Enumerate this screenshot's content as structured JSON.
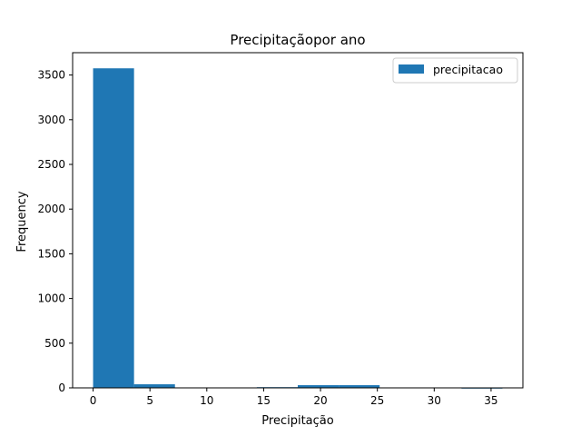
{
  "chart_data": {
    "type": "bar",
    "title": "Precipitaçãopor ano",
    "xlabel": "Precipitação",
    "ylabel": "Frequency",
    "legend": {
      "position": "top-right",
      "entries": [
        "precipitacao"
      ]
    },
    "xlim": [
      -1.8,
      37.8
    ],
    "ylim": [
      0,
      3750
    ],
    "xticks": [
      0,
      5,
      10,
      15,
      20,
      25,
      30,
      35
    ],
    "yticks": [
      0,
      500,
      1000,
      1500,
      2000,
      2500,
      3000,
      3500
    ],
    "bin_width": 3.6,
    "series": [
      {
        "name": "precipitacao",
        "color": "#1f77b4",
        "bins": [
          {
            "x0": 0.0,
            "x1": 3.6,
            "value": 3575
          },
          {
            "x0": 3.6,
            "x1": 7.2,
            "value": 40
          },
          {
            "x0": 7.2,
            "x1": 10.8,
            "value": 0
          },
          {
            "x0": 10.8,
            "x1": 14.4,
            "value": 0
          },
          {
            "x0": 14.4,
            "x1": 18.0,
            "value": 8
          },
          {
            "x0": 18.0,
            "x1": 21.6,
            "value": 30
          },
          {
            "x0": 21.6,
            "x1": 25.2,
            "value": 30
          },
          {
            "x0": 25.2,
            "x1": 28.8,
            "value": 0
          },
          {
            "x0": 28.8,
            "x1": 32.4,
            "value": 0
          },
          {
            "x0": 32.4,
            "x1": 36.0,
            "value": 2
          }
        ]
      }
    ]
  }
}
